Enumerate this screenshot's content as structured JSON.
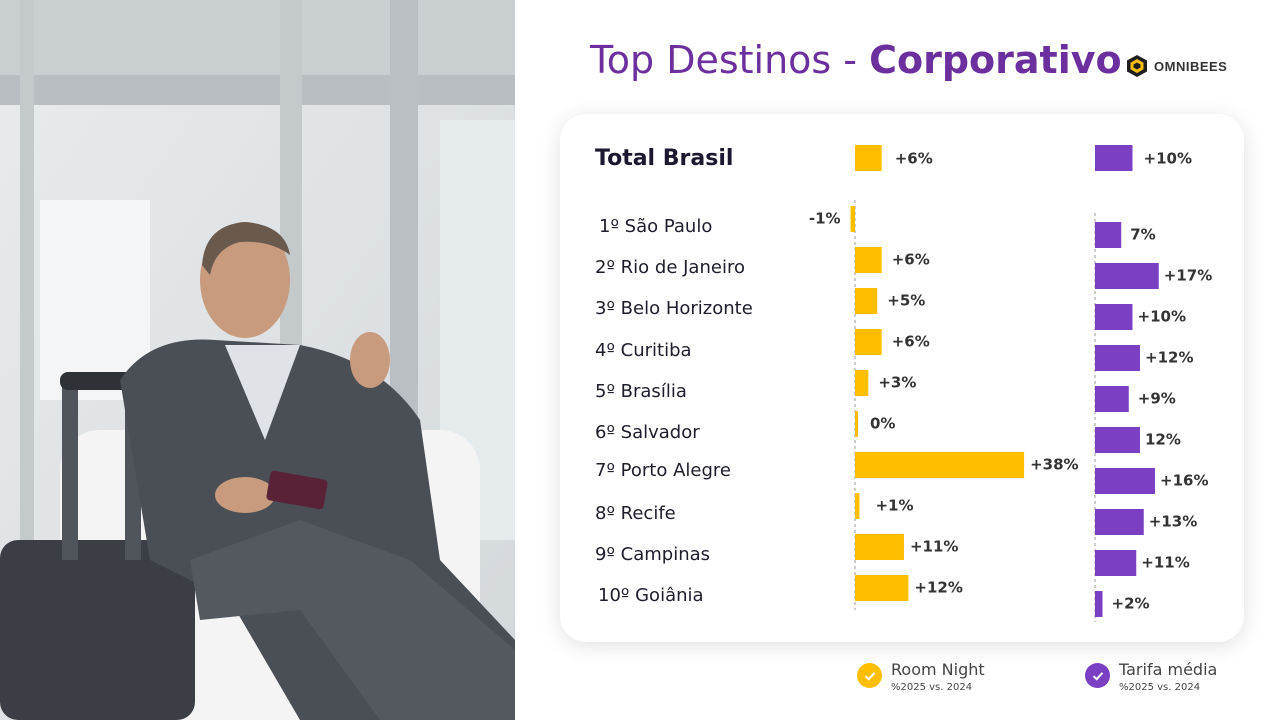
{
  "title": {
    "part1": "Top Destinos - ",
    "part2": "Corporativo"
  },
  "logo": {
    "text": "OMNIBEES"
  },
  "colors": {
    "room_night": "#FFBE00",
    "tarifa": "#7B3FC4",
    "title": "#6B2F9E"
  },
  "chart_data": {
    "type": "bar",
    "orientation": "horizontal",
    "total": {
      "label": "Total Brasil",
      "room_night": 6,
      "tarifa": 10,
      "room_night_label": "+6%",
      "tarifa_label": "+10%"
    },
    "categories": [
      "1º São Paulo",
      "2º Rio de Janeiro",
      "3º Belo Horizonte",
      "4º Curitiba",
      "5º Brasília",
      "6º Salvador",
      "7º Porto Alegre",
      "8º Recife",
      "9º Campinas",
      "10º Goiânia"
    ],
    "series": [
      {
        "name": "Room Night",
        "values": [
          -1,
          6,
          5,
          6,
          3,
          0,
          38,
          1,
          11,
          12
        ],
        "labels": [
          "-1%",
          "+6%",
          "+5%",
          "+6%",
          "+3%",
          "0%",
          "+38%",
          "+1%",
          "+11%",
          "+12%"
        ]
      },
      {
        "name": "Tarifa média",
        "values": [
          7,
          17,
          10,
          12,
          9,
          12,
          16,
          13,
          11,
          2
        ],
        "labels": [
          "7%",
          "+17%",
          "+10%",
          "+12%",
          "+9%",
          "12%",
          "+16%",
          "+13%",
          "+11%",
          "+2%"
        ]
      }
    ]
  },
  "legend": [
    {
      "label": "Room Night",
      "sub": "%2025 vs. 2024",
      "icon": "check-icon"
    },
    {
      "label": "Tarifa média",
      "sub": "%2025 vs. 2024",
      "icon": "check-icon"
    }
  ]
}
